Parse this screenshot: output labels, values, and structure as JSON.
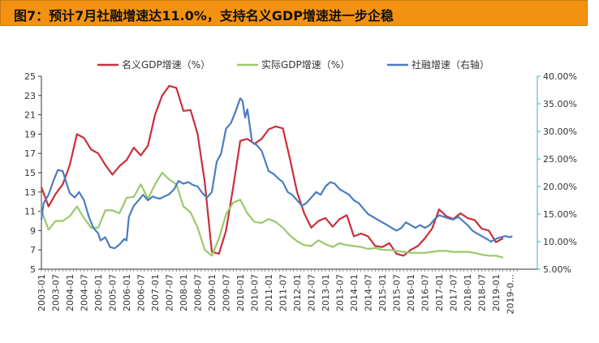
{
  "title": "图7：预计7月社融增速达11.0%，支持名义GDP增速进一步企稳",
  "chart_data": {
    "type": "line",
    "title": "图7：预计7月社融增速达11.0%，支持名义GDP增速进一步企稳",
    "x_ticks": [
      "2003-01",
      "2003-07",
      "2004-01",
      "2004-07",
      "2005-01",
      "2005-07",
      "2006-01",
      "2006-07",
      "2007-01",
      "2007-07",
      "2008-01",
      "2008-07",
      "2009-01",
      "2009-07",
      "2010-01",
      "2010-07",
      "2011-01",
      "2011-07",
      "2012-01",
      "2012-07",
      "2013-01",
      "2013-07",
      "2014-01",
      "2014-07",
      "2015-01",
      "2015-07",
      "2016-01",
      "2016-07",
      "2017-01",
      "2017-07",
      "2018-01",
      "2018-07",
      "2019-01",
      "2019-0..."
    ],
    "y_left": {
      "min": 5,
      "max": 25,
      "ticks": [
        "5",
        "7",
        "9",
        "11",
        "13",
        "15",
        "17",
        "19",
        "21",
        "23",
        "25"
      ]
    },
    "y_right": {
      "min": 5,
      "max": 40,
      "ticks": [
        "5.00%",
        "10.00%",
        "15.00%",
        "20.00%",
        "25.00%",
        "30.00%",
        "35.00%",
        "40.00%"
      ]
    },
    "legend_position": "top",
    "series": [
      {
        "name": "名义GDP增速（%）",
        "axis": "left",
        "color": "#c8303a",
        "points": [
          [
            2003.0,
            13.5
          ],
          [
            2003.25,
            11.5
          ],
          [
            2003.5,
            12.8
          ],
          [
            2003.75,
            13.8
          ],
          [
            2004.0,
            15.8
          ],
          [
            2004.25,
            19.0
          ],
          [
            2004.5,
            18.6
          ],
          [
            2004.75,
            17.4
          ],
          [
            2005.0,
            17.0
          ],
          [
            2005.25,
            15.8
          ],
          [
            2005.5,
            14.8
          ],
          [
            2005.75,
            15.7
          ],
          [
            2006.0,
            16.3
          ],
          [
            2006.25,
            17.6
          ],
          [
            2006.5,
            16.8
          ],
          [
            2006.75,
            17.8
          ],
          [
            2007.0,
            21.0
          ],
          [
            2007.25,
            23.0
          ],
          [
            2007.5,
            24.0
          ],
          [
            2007.75,
            23.8
          ],
          [
            2008.0,
            21.4
          ],
          [
            2008.25,
            21.5
          ],
          [
            2008.5,
            19.0
          ],
          [
            2008.75,
            14.0
          ],
          [
            2009.0,
            6.8
          ],
          [
            2009.25,
            6.6
          ],
          [
            2009.5,
            9.0
          ],
          [
            2009.75,
            13.5
          ],
          [
            2010.0,
            18.3
          ],
          [
            2010.25,
            18.5
          ],
          [
            2010.5,
            18.0
          ],
          [
            2010.75,
            18.5
          ],
          [
            2011.0,
            19.5
          ],
          [
            2011.25,
            19.8
          ],
          [
            2011.5,
            19.6
          ],
          [
            2011.75,
            16.4
          ],
          [
            2012.0,
            13.0
          ],
          [
            2012.25,
            10.8
          ],
          [
            2012.5,
            9.3
          ],
          [
            2012.75,
            10.0
          ],
          [
            2013.0,
            10.3
          ],
          [
            2013.25,
            9.4
          ],
          [
            2013.5,
            10.2
          ],
          [
            2013.75,
            10.6
          ],
          [
            2014.0,
            8.4
          ],
          [
            2014.25,
            8.7
          ],
          [
            2014.5,
            8.4
          ],
          [
            2014.75,
            7.4
          ],
          [
            2015.0,
            7.3
          ],
          [
            2015.25,
            7.7
          ],
          [
            2015.5,
            6.6
          ],
          [
            2015.75,
            6.4
          ],
          [
            2016.0,
            7.0
          ],
          [
            2016.25,
            7.4
          ],
          [
            2016.5,
            8.2
          ],
          [
            2016.75,
            9.2
          ],
          [
            2017.0,
            11.2
          ],
          [
            2017.25,
            10.5
          ],
          [
            2017.5,
            10.2
          ],
          [
            2017.75,
            10.8
          ],
          [
            2018.0,
            10.3
          ],
          [
            2018.25,
            10.1
          ],
          [
            2018.5,
            9.2
          ],
          [
            2018.75,
            9.0
          ],
          [
            2019.0,
            7.8
          ],
          [
            2019.25,
            8.2
          ]
        ]
      },
      {
        "name": "实际GDP增速（%）",
        "axis": "left",
        "color": "#9bc96a",
        "points": [
          [
            2003.0,
            11.1
          ],
          [
            2003.25,
            9.1
          ],
          [
            2003.5,
            10.0
          ],
          [
            2003.75,
            10.0
          ],
          [
            2004.0,
            10.5
          ],
          [
            2004.25,
            11.5
          ],
          [
            2004.5,
            10.3
          ],
          [
            2004.75,
            9.3
          ],
          [
            2005.0,
            9.3
          ],
          [
            2005.25,
            11.1
          ],
          [
            2005.5,
            11.1
          ],
          [
            2005.75,
            10.8
          ],
          [
            2006.0,
            12.4
          ],
          [
            2006.25,
            12.5
          ],
          [
            2006.5,
            13.8
          ],
          [
            2006.75,
            12.3
          ],
          [
            2007.0,
            13.8
          ],
          [
            2007.25,
            15.0
          ],
          [
            2007.5,
            14.3
          ],
          [
            2007.75,
            13.8
          ],
          [
            2008.0,
            11.5
          ],
          [
            2008.25,
            10.9
          ],
          [
            2008.5,
            9.3
          ],
          [
            2008.75,
            7.0
          ],
          [
            2009.0,
            6.4
          ],
          [
            2009.25,
            8.2
          ],
          [
            2009.5,
            10.7
          ],
          [
            2009.75,
            11.9
          ],
          [
            2010.0,
            12.2
          ],
          [
            2010.25,
            10.8
          ],
          [
            2010.5,
            9.9
          ],
          [
            2010.75,
            9.8
          ],
          [
            2011.0,
            10.2
          ],
          [
            2011.25,
            9.9
          ],
          [
            2011.5,
            9.3
          ],
          [
            2011.75,
            8.5
          ],
          [
            2012.0,
            7.9
          ],
          [
            2012.25,
            7.5
          ],
          [
            2012.5,
            7.4
          ],
          [
            2012.75,
            8.0
          ],
          [
            2013.0,
            7.6
          ],
          [
            2013.25,
            7.3
          ],
          [
            2013.5,
            7.7
          ],
          [
            2013.75,
            7.5
          ],
          [
            2014.0,
            7.4
          ],
          [
            2014.25,
            7.3
          ],
          [
            2014.5,
            7.1
          ],
          [
            2014.75,
            7.2
          ],
          [
            2015.0,
            7.0
          ],
          [
            2015.25,
            7.0
          ],
          [
            2015.5,
            6.9
          ],
          [
            2015.75,
            6.8
          ],
          [
            2016.0,
            6.7
          ],
          [
            2016.25,
            6.7
          ],
          [
            2016.5,
            6.7
          ],
          [
            2016.75,
            6.8
          ],
          [
            2017.0,
            6.9
          ],
          [
            2017.25,
            6.9
          ],
          [
            2017.5,
            6.8
          ],
          [
            2017.75,
            6.8
          ],
          [
            2018.0,
            6.8
          ],
          [
            2018.25,
            6.7
          ],
          [
            2018.5,
            6.5
          ],
          [
            2018.75,
            6.4
          ],
          [
            2019.0,
            6.4
          ],
          [
            2019.25,
            6.2
          ]
        ]
      },
      {
        "name": "社融增速（右轴）",
        "axis": "right",
        "color": "#4a7dbf",
        "points": [
          [
            2003.0,
            14.0
          ],
          [
            2003.08,
            17.0
          ],
          [
            2003.25,
            18.5
          ],
          [
            2003.42,
            21.0
          ],
          [
            2003.58,
            23.0
          ],
          [
            2003.75,
            22.8
          ],
          [
            2003.92,
            20.0
          ],
          [
            2004.0,
            18.8
          ],
          [
            2004.17,
            18.0
          ],
          [
            2004.33,
            19.0
          ],
          [
            2004.5,
            17.5
          ],
          [
            2004.67,
            14.5
          ],
          [
            2004.83,
            12.5
          ],
          [
            2005.0,
            11.5
          ],
          [
            2005.08,
            10.2
          ],
          [
            2005.25,
            10.8
          ],
          [
            2005.42,
            9.0
          ],
          [
            2005.58,
            8.8
          ],
          [
            2005.75,
            9.5
          ],
          [
            2005.92,
            10.5
          ],
          [
            2006.0,
            10.2
          ],
          [
            2006.08,
            14.5
          ],
          [
            2006.25,
            16.5
          ],
          [
            2006.42,
            17.5
          ],
          [
            2006.58,
            18.5
          ],
          [
            2006.75,
            17.5
          ],
          [
            2006.92,
            18.2
          ],
          [
            2007.0,
            18.0
          ],
          [
            2007.17,
            17.8
          ],
          [
            2007.33,
            18.2
          ],
          [
            2007.5,
            18.6
          ],
          [
            2007.67,
            19.5
          ],
          [
            2007.83,
            21.0
          ],
          [
            2008.0,
            20.5
          ],
          [
            2008.17,
            20.8
          ],
          [
            2008.33,
            20.3
          ],
          [
            2008.5,
            20.0
          ],
          [
            2008.67,
            18.8
          ],
          [
            2008.83,
            18.0
          ],
          [
            2009.0,
            19.0
          ],
          [
            2009.17,
            24.5
          ],
          [
            2009.33,
            26.0
          ],
          [
            2009.5,
            30.5
          ],
          [
            2009.67,
            31.5
          ],
          [
            2009.83,
            33.5
          ],
          [
            2010.0,
            36.0
          ],
          [
            2010.08,
            35.5
          ],
          [
            2010.17,
            32.5
          ],
          [
            2010.25,
            34.0
          ],
          [
            2010.42,
            28.0
          ],
          [
            2010.58,
            27.5
          ],
          [
            2010.75,
            26.5
          ],
          [
            2010.92,
            24.0
          ],
          [
            2011.0,
            22.8
          ],
          [
            2011.17,
            22.3
          ],
          [
            2011.33,
            21.5
          ],
          [
            2011.5,
            20.8
          ],
          [
            2011.67,
            19.0
          ],
          [
            2011.83,
            18.5
          ],
          [
            2012.0,
            17.5
          ],
          [
            2012.17,
            16.5
          ],
          [
            2012.33,
            17.0
          ],
          [
            2012.5,
            18.0
          ],
          [
            2012.67,
            19.0
          ],
          [
            2012.83,
            18.5
          ],
          [
            2013.0,
            20.0
          ],
          [
            2013.17,
            20.8
          ],
          [
            2013.33,
            20.5
          ],
          [
            2013.5,
            19.5
          ],
          [
            2013.67,
            19.0
          ],
          [
            2013.83,
            18.5
          ],
          [
            2014.0,
            17.5
          ],
          [
            2014.17,
            17.0
          ],
          [
            2014.33,
            16.0
          ],
          [
            2014.5,
            15.0
          ],
          [
            2014.67,
            14.5
          ],
          [
            2014.83,
            14.0
          ],
          [
            2015.0,
            13.5
          ],
          [
            2015.17,
            13.0
          ],
          [
            2015.33,
            12.5
          ],
          [
            2015.5,
            12.0
          ],
          [
            2015.67,
            12.5
          ],
          [
            2015.83,
            13.5
          ],
          [
            2016.0,
            13.0
          ],
          [
            2016.17,
            12.5
          ],
          [
            2016.33,
            13.0
          ],
          [
            2016.5,
            12.5
          ],
          [
            2016.67,
            13.0
          ],
          [
            2016.83,
            14.0
          ],
          [
            2017.0,
            14.8
          ],
          [
            2017.17,
            14.5
          ],
          [
            2017.33,
            14.2
          ],
          [
            2017.5,
            14.0
          ],
          [
            2017.67,
            14.5
          ],
          [
            2017.83,
            13.8
          ],
          [
            2018.0,
            13.0
          ],
          [
            2018.17,
            12.0
          ],
          [
            2018.33,
            11.5
          ],
          [
            2018.5,
            11.0
          ],
          [
            2018.67,
            10.5
          ],
          [
            2018.83,
            10.0
          ],
          [
            2019.0,
            10.5
          ],
          [
            2019.17,
            10.8
          ],
          [
            2019.33,
            11.0
          ],
          [
            2019.5,
            10.8
          ],
          [
            2019.58,
            11.0
          ]
        ]
      }
    ]
  }
}
